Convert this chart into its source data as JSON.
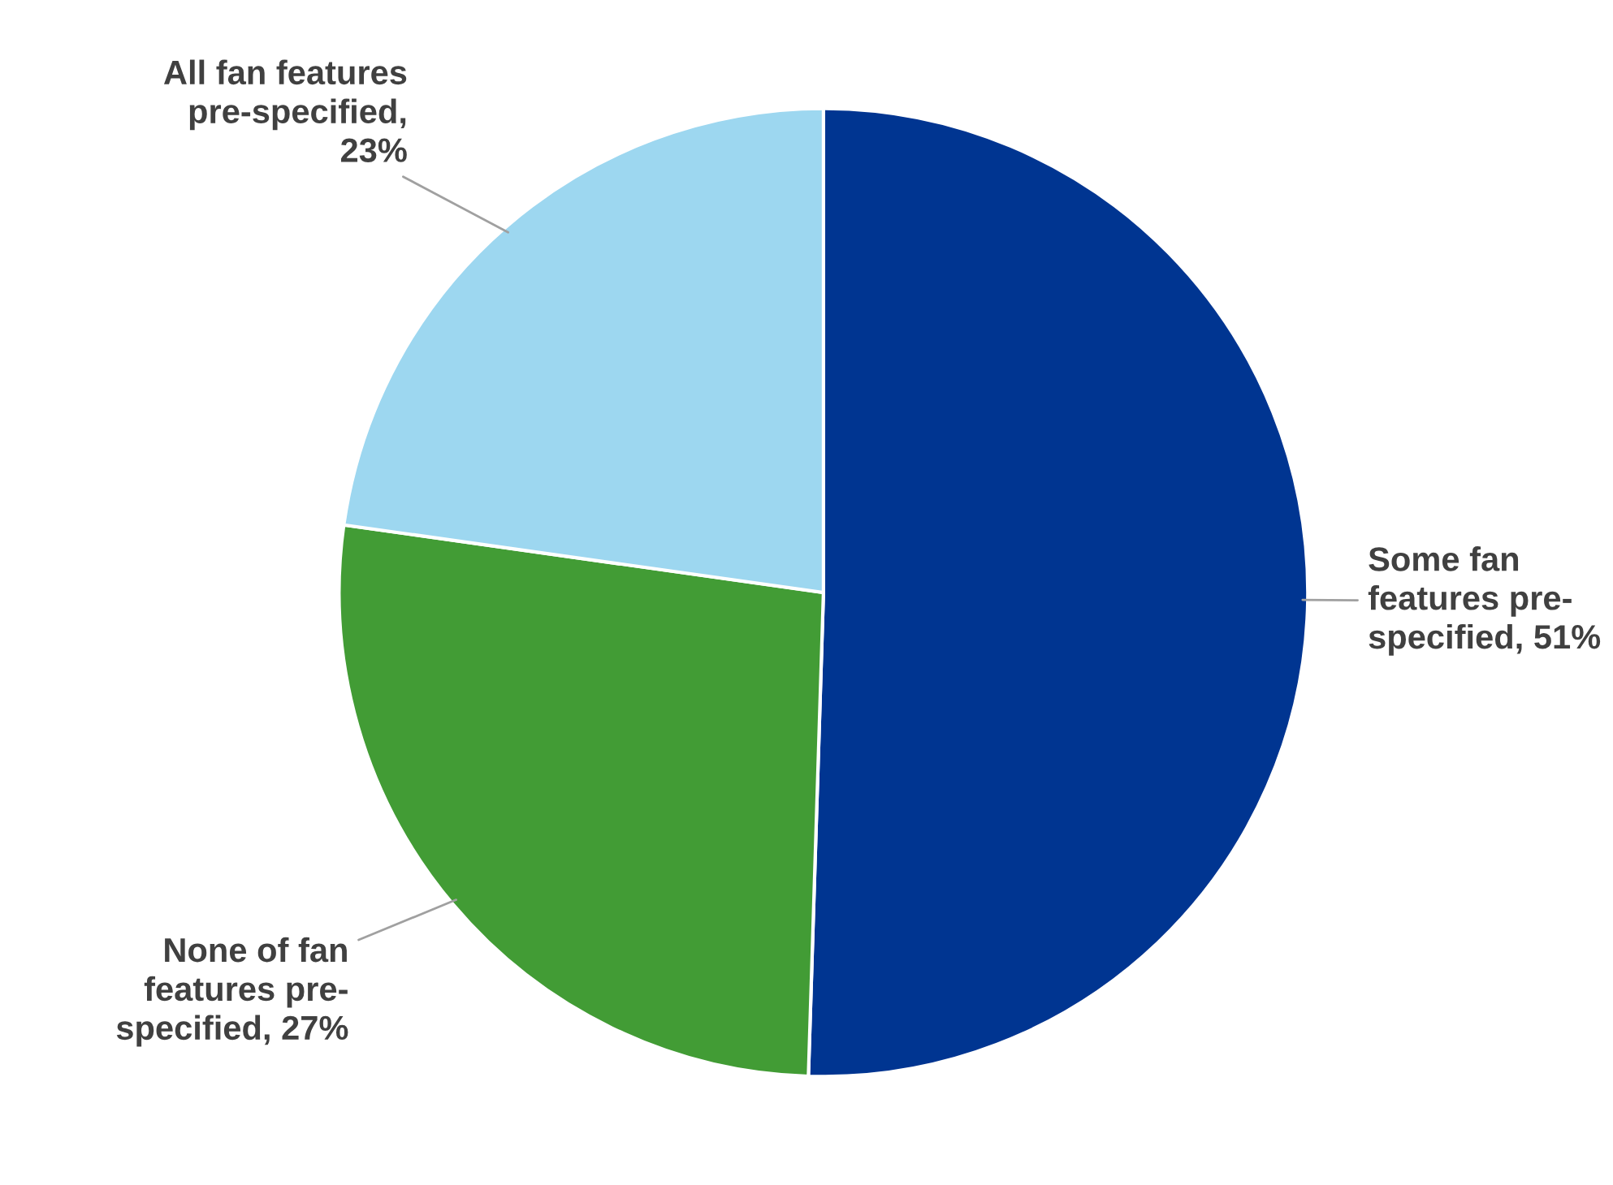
{
  "chart_data": {
    "type": "pie",
    "categories": [
      "Some fan features pre-specified, 51%",
      "None of fan features pre-specified, 27%",
      "All fan features pre-specified, 23%"
    ],
    "values": [
      51,
      27,
      23
    ],
    "colors": [
      "#003591",
      "#429c35",
      "#9dd7f0"
    ],
    "legend": false
  }
}
